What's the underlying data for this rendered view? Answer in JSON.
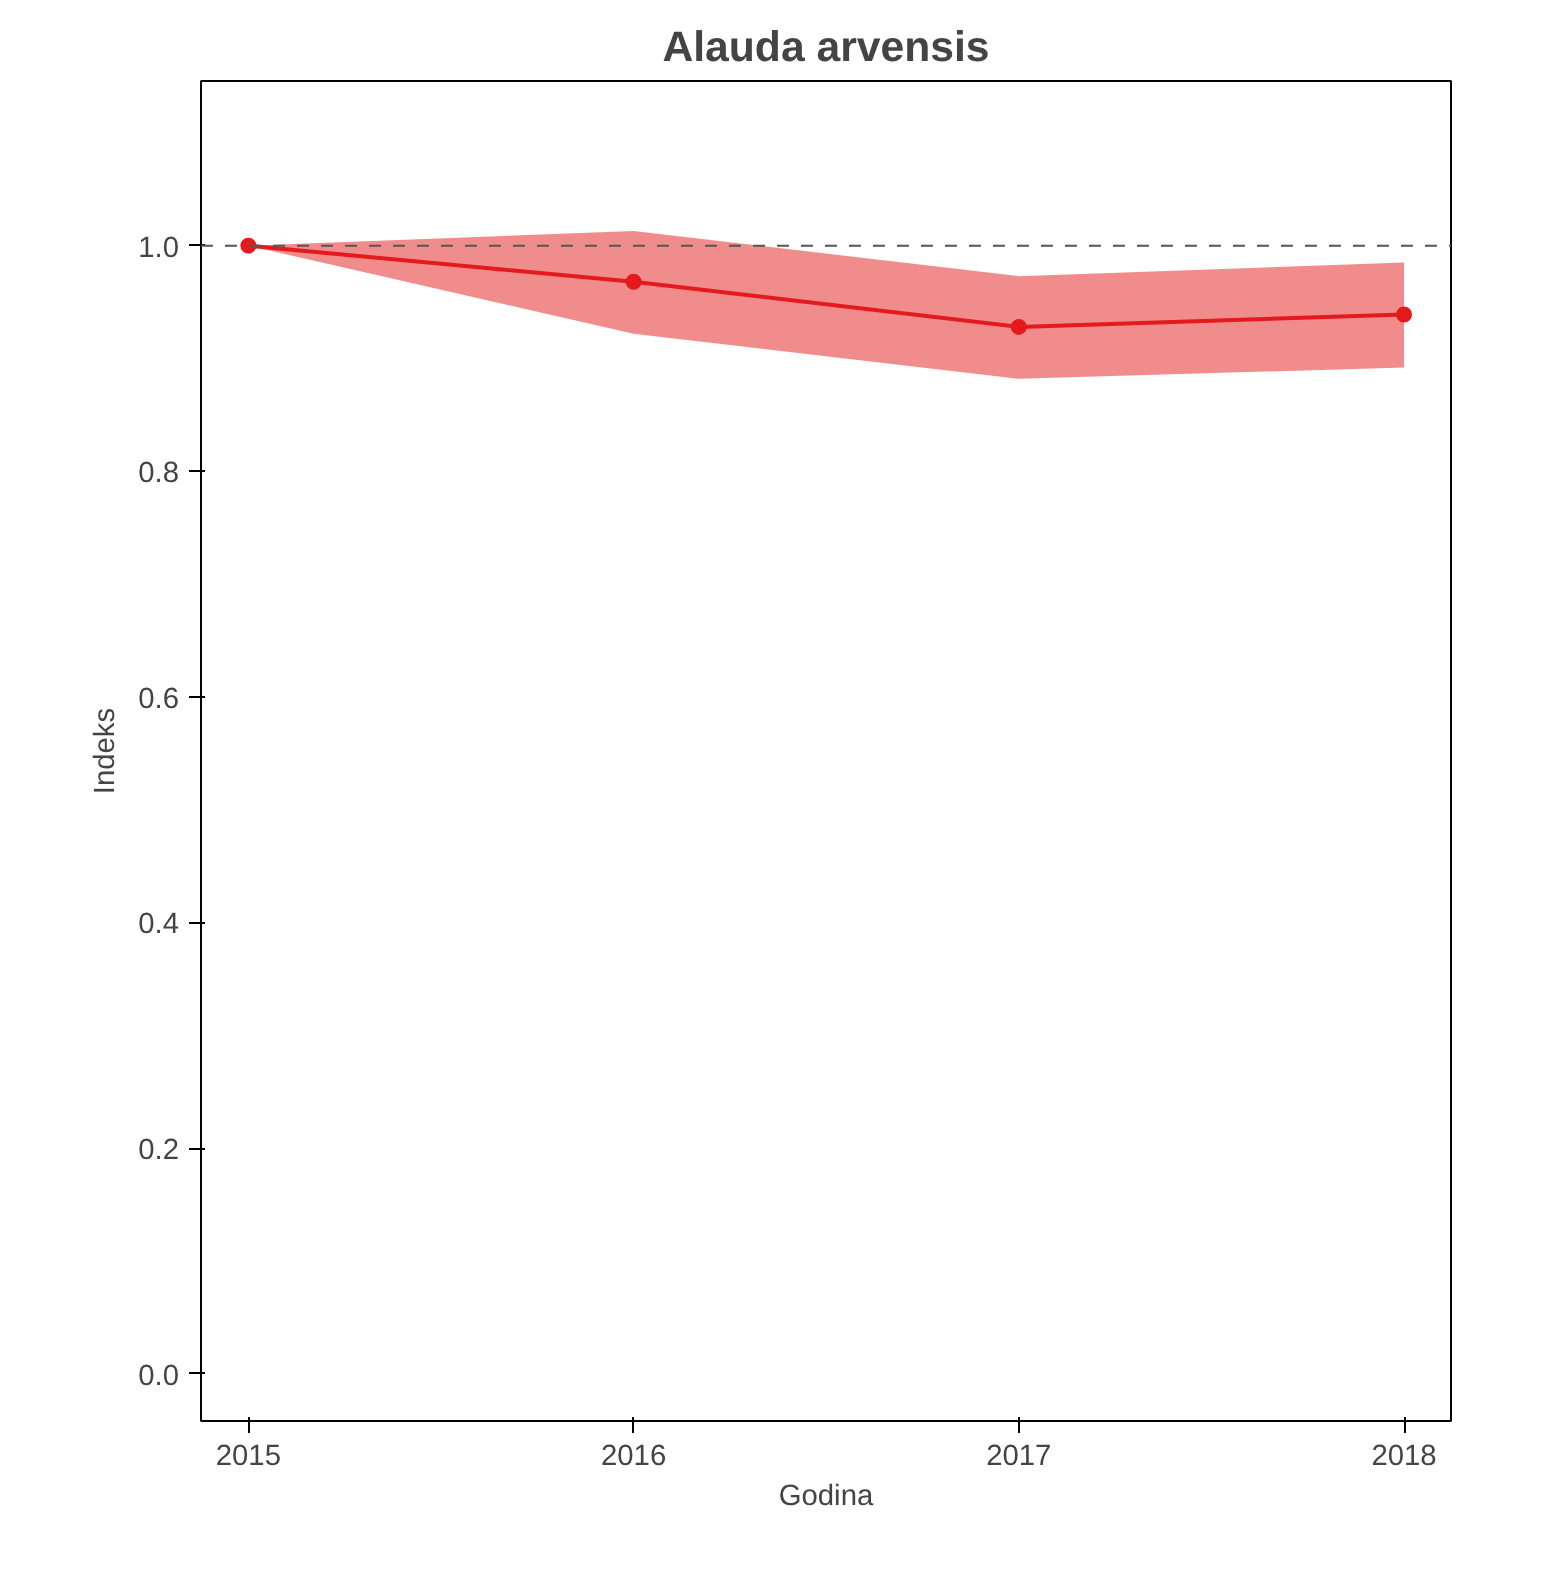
{
  "chart_data": {
    "type": "line",
    "title": "Alauda arvensis",
    "xlabel": "Godina",
    "ylabel": "Indeks",
    "x": [
      2015,
      2016,
      2017,
      2018
    ],
    "series": [
      {
        "color": "#e41a1c",
        "values": [
          1.0,
          0.968,
          0.928,
          0.939
        ],
        "lower": [
          1.0,
          0.922,
          0.882,
          0.892
        ],
        "upper": [
          1.0,
          1.013,
          0.973,
          0.985
        ]
      }
    ],
    "xlim": [
      2014.877,
      2018.122
    ],
    "ylim": [
      -0.042,
      1.146
    ],
    "xticks": [
      2015,
      2016,
      2017,
      2018
    ],
    "yticks": [
      {
        "value": 0,
        "label": "0.0"
      },
      {
        "value": 0.2,
        "label": "0.2"
      },
      {
        "value": 0.4,
        "label": "0.4"
      },
      {
        "value": 0.6,
        "label": "0.6"
      },
      {
        "value": 0.8,
        "label": "0.8"
      },
      {
        "value": 1,
        "label": "1.0"
      }
    ],
    "ref_lines": [
      {
        "axis": "y",
        "value": 1,
        "color": "#555555",
        "line_style": "dashed"
      }
    ],
    "marker": "circle",
    "line_style": "solid",
    "grid": false
  }
}
